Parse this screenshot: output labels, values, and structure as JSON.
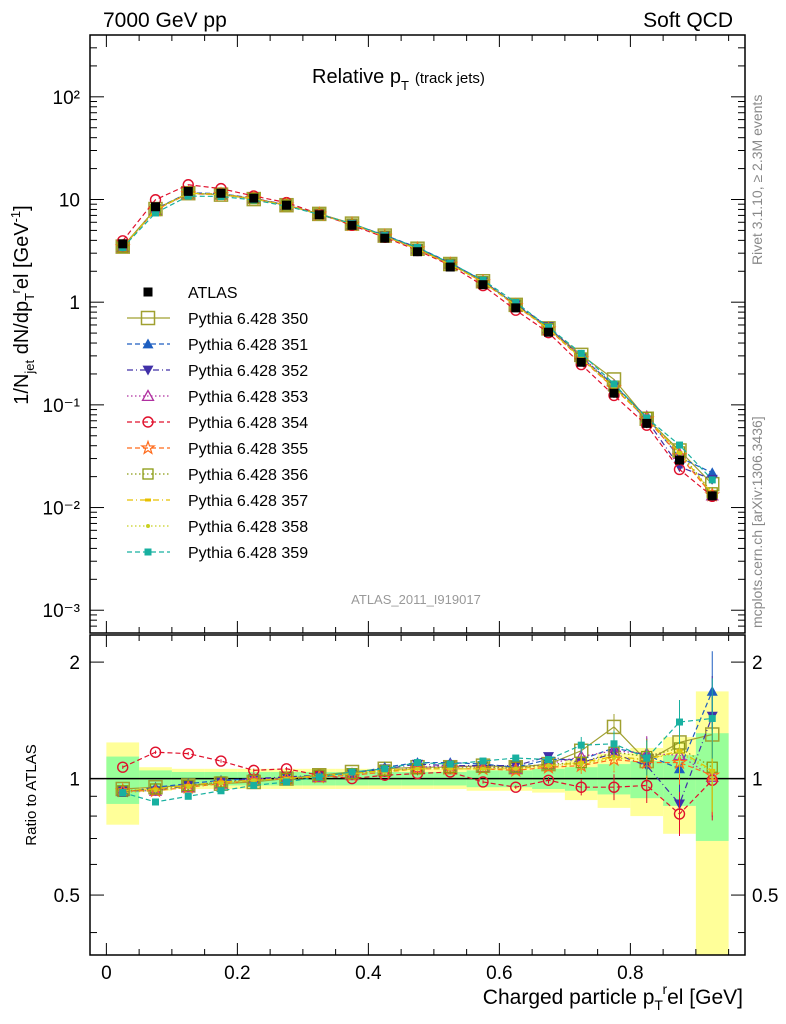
{
  "header": {
    "left": "7000 GeV pp",
    "right": "Soft QCD"
  },
  "side": {
    "rivet": "Rivet 3.1.10, ≥ 2.3M events",
    "mcplots": "mcplots.cern.ch [arXiv:1306.3436]"
  },
  "chart_data": {
    "type": "line",
    "title_main": "Relative p",
    "title_sub": "T",
    "title_paren": "(track jets)",
    "analysis_label": "ATLAS_2011_I919017",
    "ylabel_upper": "1/N_jet dN/dp_T^rel [GeV^-1]",
    "ylabel_lower": "Ratio to ATLAS",
    "xlabel": "Charged particle p_T^rel [GeV]",
    "upper_y_scale": "log",
    "upper_ylim": [
      0.0006,
      400
    ],
    "lower_ylim": [
      0.35,
      2.35
    ],
    "xlim": [
      -0.025,
      0.975
    ],
    "x_ticks": [
      "0",
      "0.2",
      "0.4",
      "0.6",
      "0.8"
    ],
    "upper_y_ticks": [
      "10⁻³",
      "10⁻²",
      "10⁻¹",
      "1",
      "10",
      "10²"
    ],
    "lower_y_ticks": [
      "0.5",
      "1",
      "2"
    ],
    "x": [
      0.025,
      0.075,
      0.125,
      0.175,
      0.225,
      0.275,
      0.325,
      0.375,
      0.425,
      0.475,
      0.525,
      0.575,
      0.625,
      0.675,
      0.725,
      0.775,
      0.825,
      0.875,
      0.925
    ],
    "data_name": "ATLAS",
    "data_values": [
      3.7,
      8.5,
      12.0,
      11.5,
      10.3,
      8.8,
      7.1,
      5.6,
      4.2,
      3.1,
      2.2,
      1.48,
      0.88,
      0.51,
      0.26,
      0.13,
      0.066,
      0.029,
      0.013
    ],
    "band_inner": [
      0.14,
      0.05,
      0.04,
      0.04,
      0.04,
      0.04,
      0.04,
      0.04,
      0.04,
      0.04,
      0.04,
      0.05,
      0.05,
      0.06,
      0.07,
      0.09,
      0.11,
      0.15,
      0.31
    ],
    "band_outer": [
      0.24,
      0.07,
      0.06,
      0.06,
      0.06,
      0.06,
      0.06,
      0.06,
      0.06,
      0.06,
      0.06,
      0.07,
      0.07,
      0.08,
      0.12,
      0.16,
      0.2,
      0.28,
      0.68
    ],
    "series": [
      {
        "name": "Pythia 6.428 350",
        "color": "#a0a030",
        "marker": "square-open",
        "line": "solid",
        "ratio": [
          0.94,
          0.95,
          0.96,
          0.97,
          0.98,
          1.0,
          1.02,
          1.04,
          1.06,
          1.07,
          1.07,
          1.08,
          1.07,
          1.09,
          1.18,
          1.36,
          1.11,
          1.24,
          1.3
        ]
      },
      {
        "name": "Pythia 6.428 351",
        "color": "#1d5ec0",
        "marker": "triangle-up",
        "line": "dashed",
        "ratio": [
          0.92,
          0.95,
          0.97,
          0.99,
          1.0,
          1.0,
          1.02,
          1.03,
          1.07,
          1.1,
          1.1,
          1.09,
          1.07,
          1.12,
          1.12,
          1.2,
          1.15,
          1.06,
          1.68
        ]
      },
      {
        "name": "Pythia 6.428 352",
        "color": "#4030a8",
        "marker": "triangle-down",
        "line": "dashdot",
        "ratio": [
          0.93,
          0.93,
          0.96,
          0.98,
          1.0,
          1.01,
          1.02,
          1.03,
          1.06,
          1.09,
          1.08,
          1.08,
          1.08,
          1.14,
          1.1,
          1.16,
          1.08,
          0.86,
          1.45
        ]
      },
      {
        "name": "Pythia 6.428 353",
        "color": "#b030a0",
        "marker": "triangle-up-open",
        "line": "dotted",
        "ratio": [
          0.93,
          0.93,
          0.95,
          0.97,
          1.0,
          1.0,
          1.01,
          1.02,
          1.04,
          1.07,
          1.08,
          1.07,
          1.06,
          1.09,
          1.14,
          1.18,
          1.16,
          1.15,
          1.01
        ]
      },
      {
        "name": "Pythia 6.428 354",
        "color": "#e0102c",
        "marker": "circle-open",
        "line": "dashed",
        "ratio": [
          1.07,
          1.17,
          1.16,
          1.11,
          1.05,
          1.06,
          1.02,
          1.0,
          1.02,
          1.03,
          1.04,
          0.98,
          0.95,
          0.99,
          0.95,
          0.95,
          0.96,
          0.81,
          0.99
        ]
      },
      {
        "name": "Pythia 6.428 355",
        "color": "#ff6a1a",
        "marker": "star-open",
        "line": "dashed",
        "ratio": [
          0.93,
          0.93,
          0.95,
          0.97,
          0.99,
          1.0,
          1.01,
          1.02,
          1.04,
          1.06,
          1.06,
          1.06,
          1.05,
          1.07,
          1.08,
          1.12,
          1.1,
          1.1,
          1.02
        ]
      },
      {
        "name": "Pythia 6.428 356",
        "color": "#8a9a10",
        "marker": "square-open-small",
        "line": "dotted",
        "ratio": [
          0.93,
          0.94,
          0.96,
          0.98,
          0.99,
          1.0,
          1.02,
          1.03,
          1.05,
          1.06,
          1.07,
          1.07,
          1.07,
          1.09,
          1.1,
          1.17,
          1.14,
          1.2,
          1.07
        ]
      },
      {
        "name": "Pythia 6.428 357",
        "color": "#e8c000",
        "marker": "dash",
        "line": "dashdot",
        "ratio": [
          0.93,
          0.94,
          0.96,
          0.98,
          0.99,
          1.0,
          1.02,
          1.03,
          1.05,
          1.06,
          1.06,
          1.06,
          1.06,
          1.08,
          1.1,
          1.14,
          1.12,
          1.18,
          1.05
        ]
      },
      {
        "name": "Pythia 6.428 358",
        "color": "#c8d020",
        "marker": "dot",
        "line": "dotted",
        "ratio": [
          0.92,
          0.93,
          0.95,
          0.97,
          0.99,
          1.0,
          1.01,
          1.03,
          1.04,
          1.06,
          1.06,
          1.06,
          1.06,
          1.08,
          1.09,
          1.13,
          1.12,
          1.17,
          1.04
        ]
      },
      {
        "name": "Pythia 6.428 359",
        "color": "#18b0a0",
        "marker": "square",
        "line": "dashed",
        "ratio": [
          0.92,
          0.87,
          0.9,
          0.93,
          0.96,
          0.98,
          1.01,
          1.04,
          1.06,
          1.1,
          1.09,
          1.11,
          1.13,
          1.12,
          1.22,
          1.23,
          1.13,
          1.4,
          1.43
        ]
      }
    ]
  }
}
